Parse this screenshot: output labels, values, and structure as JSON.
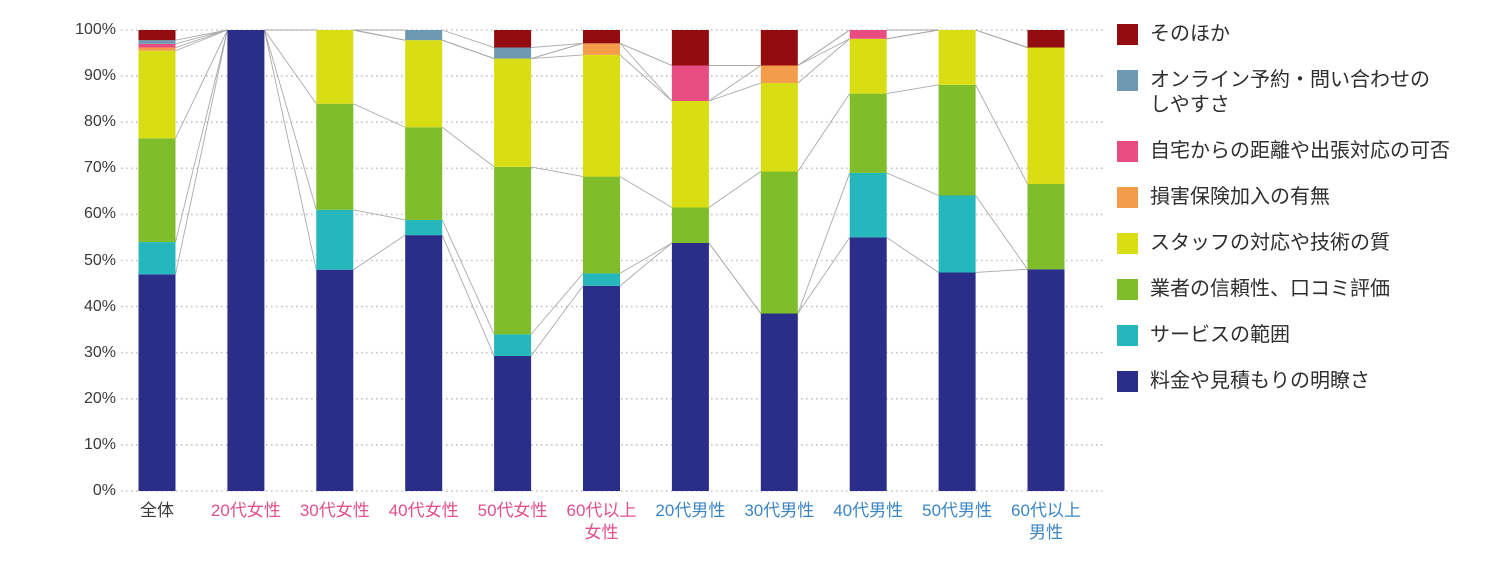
{
  "chart_data": {
    "type": "bar",
    "stacked": true,
    "percent_stacked": true,
    "title": "",
    "xlabel": "",
    "ylabel": "",
    "ylim": [
      0,
      100
    ],
    "y_ticks": [
      "0%",
      "10%",
      "20%",
      "30%",
      "40%",
      "50%",
      "60%",
      "70%",
      "80%",
      "90%",
      "100%"
    ],
    "grid": "dotted-horizontal",
    "legend_position": "right",
    "connector_lines": true,
    "grid_color": "#c4c4c4",
    "connector_color": "#aaaaaa",
    "categories": [
      {
        "label": "全体",
        "lines": [
          "全体"
        ],
        "color": "#3a3a3a"
      },
      {
        "label": "20代女性",
        "lines": [
          "20代女性"
        ],
        "color": "#e0508e"
      },
      {
        "label": "30代女性",
        "lines": [
          "30代女性"
        ],
        "color": "#e0508e"
      },
      {
        "label": "40代女性",
        "lines": [
          "40代女性"
        ],
        "color": "#e0508e"
      },
      {
        "label": "50代女性",
        "lines": [
          "50代女性"
        ],
        "color": "#e0508e"
      },
      {
        "label": "60代以上女性",
        "lines": [
          "60代以上",
          "女性"
        ],
        "color": "#e0508e"
      },
      {
        "label": "20代男性",
        "lines": [
          "20代男性"
        ],
        "color": "#3c85c4"
      },
      {
        "label": "30代男性",
        "lines": [
          "30代男性"
        ],
        "color": "#3c85c4"
      },
      {
        "label": "40代男性",
        "lines": [
          "40代男性"
        ],
        "color": "#3c85c4"
      },
      {
        "label": "50代男性",
        "lines": [
          "50代男性"
        ],
        "color": "#3c85c4"
      },
      {
        "label": "60代以上男性",
        "lines": [
          "60代以上",
          "男性"
        ],
        "color": "#3c85c4"
      }
    ],
    "series": [
      {
        "name": "料金や見積もりの明瞭さ",
        "color": "#2a2e89",
        "values": [
          47.0,
          100,
          48.0,
          55.5,
          29.3,
          44.5,
          53.8,
          38.5,
          55.0,
          47.4,
          48.1
        ]
      },
      {
        "name": "サービスの範囲",
        "color": "#26b7bc",
        "values": [
          7.0,
          0,
          13.0,
          3.3,
          4.7,
          2.7,
          0,
          0,
          14.0,
          16.7,
          0
        ]
      },
      {
        "name": "業者の信頼性、口コミ評価",
        "color": "#7fbe2a",
        "values": [
          22.5,
          0,
          23.0,
          20.1,
          36.3,
          21.0,
          7.7,
          30.8,
          17.2,
          24.0,
          18.5
        ]
      },
      {
        "name": "スタッフの対応や技術の質",
        "color": "#d9de14",
        "values": [
          19.0,
          0,
          16.0,
          18.9,
          23.5,
          26.4,
          23.1,
          19.2,
          11.9,
          11.9,
          29.6
        ]
      },
      {
        "name": "損害保険加入の有無",
        "color": "#f39d4a",
        "values": [
          0.7,
          0,
          0,
          0,
          0,
          2.5,
          0,
          3.8,
          0,
          0,
          0
        ]
      },
      {
        "name": "自宅からの距離や出張対応の可否",
        "color": "#e84d82",
        "values": [
          0.8,
          0,
          0,
          0,
          0,
          0,
          7.7,
          0,
          1.9,
          0,
          0
        ]
      },
      {
        "name": "オンライン予約・問い合わせのしやすさ",
        "color": "#6f99b2",
        "values": [
          0.8,
          0,
          0,
          2.2,
          2.4,
          0,
          0,
          0,
          0,
          0,
          0
        ]
      },
      {
        "name": "そのほか",
        "color": "#930c10",
        "values": [
          2.2,
          0,
          0,
          0,
          3.8,
          2.9,
          7.7,
          7.7,
          0,
          0,
          3.8
        ]
      }
    ],
    "legend": {
      "items": [
        {
          "lines": [
            "そのほか"
          ],
          "color": "#930c10"
        },
        {
          "lines": [
            "オンライン予約・問い合わせの",
            "しやすさ"
          ],
          "color": "#6f99b2"
        },
        {
          "lines": [
            "自宅からの距離や出張対応の可否"
          ],
          "color": "#e84d82"
        },
        {
          "lines": [
            "損害保険加入の有無"
          ],
          "color": "#f39d4a"
        },
        {
          "lines": [
            "スタッフの対応や技術の質"
          ],
          "color": "#d9de14"
        },
        {
          "lines": [
            "業者の信頼性、口コミ評価"
          ],
          "color": "#7fbe2a"
        },
        {
          "lines": [
            "サービスの範囲"
          ],
          "color": "#26b7bc"
        },
        {
          "lines": [
            "料金や見積もりの明瞭さ"
          ],
          "color": "#2a2e89"
        }
      ]
    }
  }
}
